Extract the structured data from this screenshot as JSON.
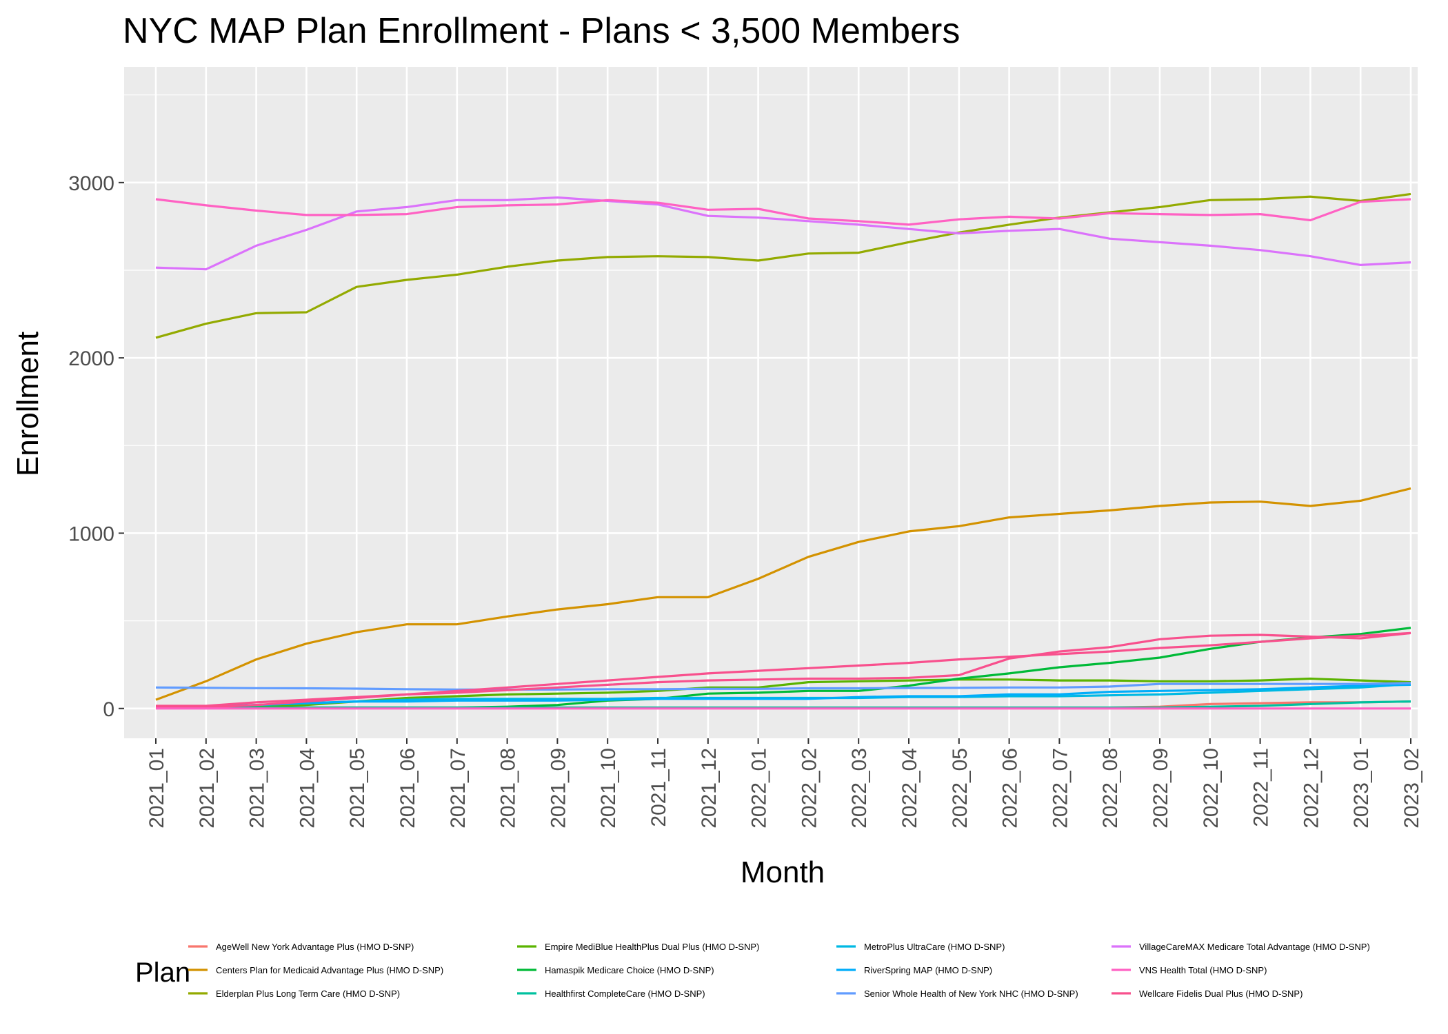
{
  "chart_data": {
    "type": "line",
    "title": "NYC MAP Plan Enrollment - Plans < 3,500 Members",
    "xlabel": "Month",
    "ylabel": "Enrollment",
    "ylim": [
      -170,
      3660
    ],
    "y_ticks": [
      0,
      1000,
      2000,
      3000
    ],
    "y_tick_labels": [
      "0",
      "1000",
      "2000",
      "3000"
    ],
    "grid": true,
    "legend_title": "Plan",
    "legend_position": "bottom",
    "categories": [
      "2021_01",
      "2021_02",
      "2021_03",
      "2021_04",
      "2021_05",
      "2021_06",
      "2021_07",
      "2021_08",
      "2021_09",
      "2021_10",
      "2021_11",
      "2021_12",
      "2022_01",
      "2022_02",
      "2022_03",
      "2022_04",
      "2022_05",
      "2022_06",
      "2022_07",
      "2022_08",
      "2022_09",
      "2022_10",
      "2022_11",
      "2022_12",
      "2023_01",
      "2023_02"
    ],
    "series": [
      {
        "name": "AgeWell New York Advantage Plus (HMO D-SNP)",
        "color": "#F8766D",
        "values": [
          5,
          5,
          5,
          5,
          5,
          5,
          5,
          5,
          5,
          5,
          5,
          5,
          5,
          5,
          5,
          5,
          5,
          5,
          5,
          5,
          10,
          25,
          30,
          35,
          35,
          40
        ]
      },
      {
        "name": "Centers Plan for Medicaid Advantage Plus (HMO D-SNP)",
        "color": "#D39200",
        "values": [
          50,
          155,
          280,
          370,
          435,
          480,
          480,
          525,
          565,
          595,
          635,
          635,
          740,
          865,
          950,
          1010,
          1040,
          1090,
          1110,
          1130,
          1155,
          1175,
          1180,
          1155,
          1185,
          1255
        ]
      },
      {
        "name": "Elderplan Plus Long Term Care (HMO D-SNP)",
        "color": "#93AA00",
        "values": [
          2115,
          2195,
          2255,
          2260,
          2405,
          2445,
          2475,
          2520,
          2555,
          2575,
          2580,
          2575,
          2555,
          2595,
          2600,
          2660,
          2715,
          2760,
          2800,
          2830,
          2860,
          2900,
          2905,
          2920,
          2895,
          2935
        ]
      },
      {
        "name": "Empire MediBlue HealthPlus Dual Plus (HMO D-SNP)",
        "color": "#5BB300",
        "values": [
          5,
          5,
          10,
          20,
          40,
          60,
          70,
          80,
          85,
          90,
          100,
          120,
          120,
          150,
          155,
          160,
          165,
          165,
          160,
          160,
          155,
          155,
          160,
          170,
          160,
          150
        ]
      },
      {
        "name": "Hamaspik Medicare Choice (HMO D-SNP)",
        "color": "#00BA38",
        "values": [
          5,
          5,
          5,
          5,
          5,
          5,
          5,
          10,
          20,
          45,
          55,
          85,
          90,
          100,
          100,
          130,
          170,
          200,
          235,
          260,
          290,
          340,
          380,
          405,
          425,
          460
        ]
      },
      {
        "name": "Healthfirst CompleteCare (HMO D-SNP)",
        "color": "#00C19F",
        "values": [
          5,
          5,
          5,
          5,
          5,
          5,
          5,
          5,
          5,
          5,
          5,
          5,
          5,
          5,
          5,
          5,
          5,
          5,
          5,
          5,
          5,
          10,
          15,
          25,
          35,
          40
        ]
      },
      {
        "name": "MetroPlus UltraCare (HMO D-SNP)",
        "color": "#00B9E3",
        "values": [
          5,
          10,
          20,
          30,
          40,
          50,
          55,
          55,
          55,
          55,
          60,
          60,
          60,
          60,
          60,
          65,
          65,
          70,
          70,
          75,
          80,
          90,
          100,
          110,
          120,
          140
        ]
      },
      {
        "name": "RiverSpring MAP (HMO D-SNP)",
        "color": "#00ADFA",
        "values": [
          10,
          10,
          20,
          30,
          40,
          40,
          45,
          45,
          45,
          50,
          55,
          55,
          55,
          55,
          65,
          70,
          70,
          80,
          80,
          95,
          100,
          105,
          110,
          120,
          130,
          135
        ]
      },
      {
        "name": "Senior Whole Health of New York NHC (HMO D-SNP)",
        "color": "#619CFF",
        "values": [
          120,
          118,
          116,
          115,
          113,
          110,
          108,
          108,
          108,
          110,
          110,
          112,
          112,
          115,
          115,
          117,
          118,
          120,
          120,
          125,
          140,
          140,
          140,
          140,
          140,
          145
        ]
      },
      {
        "name": "VillageCareMAX Medicare Total Advantage (HMO D-SNP)",
        "color": "#DB72FB",
        "values": [
          2515,
          2505,
          2640,
          2730,
          2835,
          2860,
          2900,
          2900,
          2915,
          2895,
          2875,
          2810,
          2800,
          2780,
          2760,
          2735,
          2710,
          2725,
          2735,
          2680,
          2660,
          2640,
          2615,
          2580,
          2530,
          2545
        ]
      },
      {
        "name": "VNS Health Total (HMO D-SNP)",
        "color": "#FF61C3",
        "values": [
          2905,
          2870,
          2840,
          2815,
          2815,
          2820,
          2860,
          2870,
          2875,
          2900,
          2885,
          2845,
          2850,
          2795,
          2780,
          2760,
          2790,
          2805,
          2795,
          2825,
          2820,
          2815,
          2820,
          2785,
          2890,
          2905
        ]
      },
      {
        "name": "Wellcare Fidelis Dual Plus (HMO D-SNP)",
        "color": "#F8508D",
        "values": [
          15,
          15,
          35,
          50,
          65,
          80,
          90,
          105,
          120,
          135,
          150,
          160,
          165,
          170,
          170,
          175,
          190,
          285,
          325,
          350,
          395,
          415,
          420,
          410,
          400,
          430
        ]
      },
      {
        "name": "Wellcare Fidelis Dual Plus (HMO D-SNP)",
        "color": "#F8508D",
        "values": [
          5,
          5,
          20,
          40,
          60,
          80,
          100,
          120,
          140,
          160,
          180,
          200,
          215,
          230,
          245,
          260,
          280,
          295,
          310,
          325,
          345,
          360,
          380,
          400,
          415,
          430
        ]
      },
      {
        "name": "VNS Health Total (HMO D-SNP)",
        "color": "#FF61C3",
        "values": [
          0,
          0,
          0,
          0,
          0,
          0,
          0,
          0,
          0,
          0,
          0,
          0,
          0,
          0,
          0,
          0,
          0,
          0,
          0,
          0,
          0,
          0,
          0,
          0,
          0,
          0
        ]
      }
    ]
  },
  "legend": {
    "title": "Plan",
    "items": [
      {
        "label": "AgeWell New York Advantage Plus (HMO D-SNP)",
        "color": "#F8766D"
      },
      {
        "label": "Centers Plan for Medicaid Advantage Plus (HMO D-SNP)",
        "color": "#D39200"
      },
      {
        "label": "Elderplan Plus Long Term Care (HMO D-SNP)",
        "color": "#93AA00"
      },
      {
        "label": "Empire MediBlue HealthPlus Dual Plus (HMO D-SNP)",
        "color": "#5BB300"
      },
      {
        "label": "Hamaspik Medicare Choice (HMO D-SNP)",
        "color": "#00BA38"
      },
      {
        "label": "Healthfirst CompleteCare (HMO D-SNP)",
        "color": "#00C19F"
      },
      {
        "label": "MetroPlus UltraCare (HMO D-SNP)",
        "color": "#00B9E3"
      },
      {
        "label": "RiverSpring MAP (HMO D-SNP)",
        "color": "#00ADFA"
      },
      {
        "label": "Senior Whole Health of New York NHC (HMO D-SNP)",
        "color": "#619CFF"
      },
      {
        "label": "VillageCareMAX Medicare Total Advantage (HMO D-SNP)",
        "color": "#DB72FB"
      },
      {
        "label": "VNS Health Total (HMO D-SNP)",
        "color": "#FF61C3"
      },
      {
        "label": "Wellcare Fidelis Dual Plus (HMO D-SNP)",
        "color": "#F8508D"
      }
    ]
  }
}
